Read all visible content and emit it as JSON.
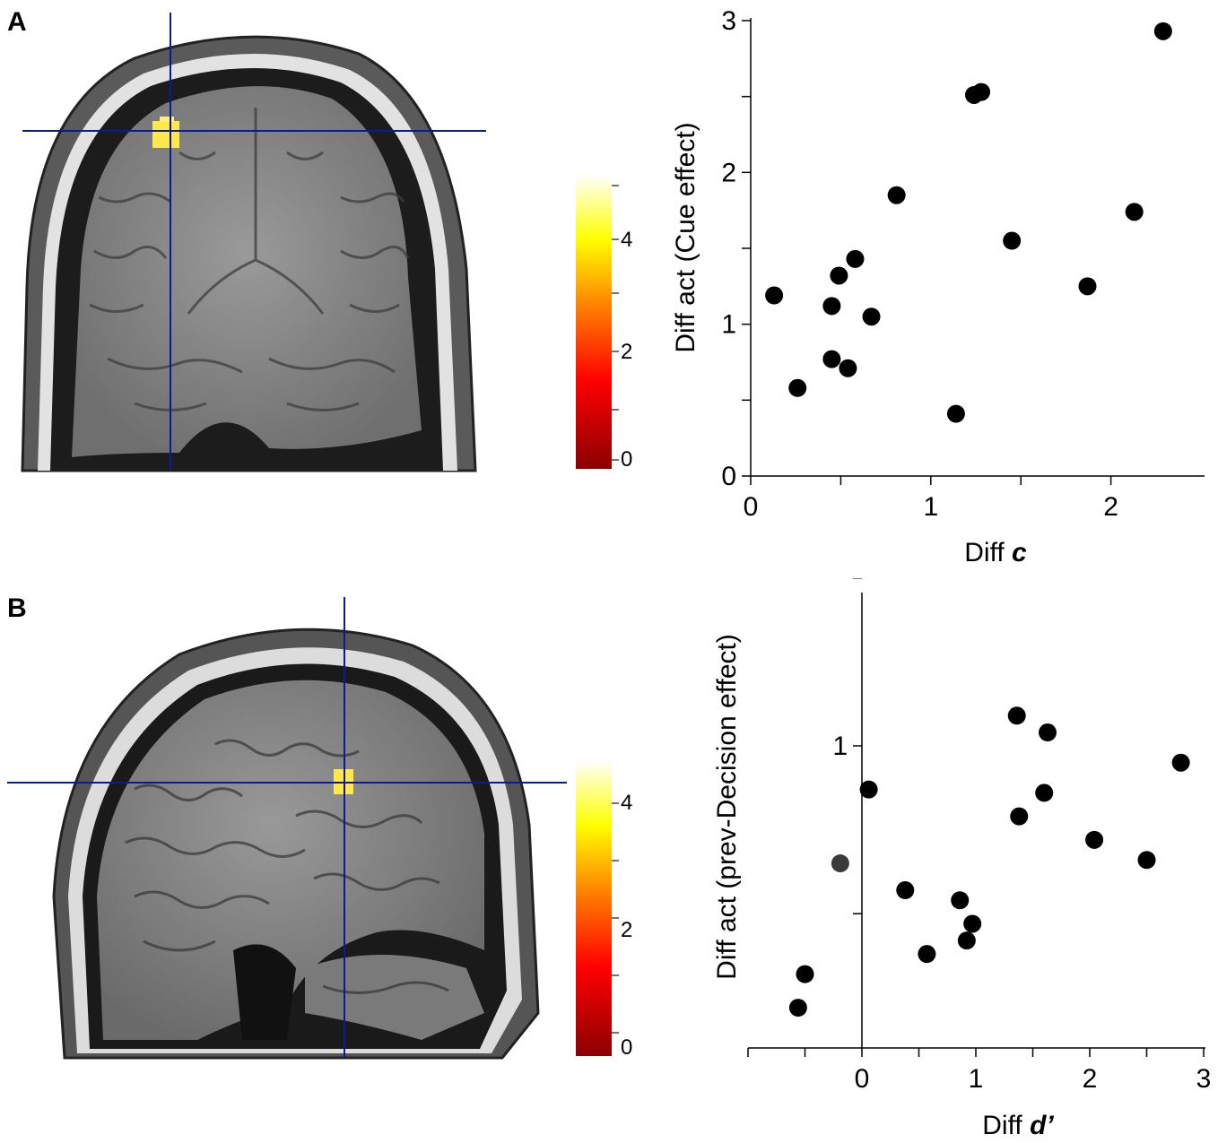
{
  "panels": [
    {
      "label": "A"
    },
    {
      "label": "B"
    }
  ],
  "colorbars": [
    {
      "ticks": [
        "4",
        "2",
        "0"
      ],
      "colors": [
        "#8b0000",
        "#ff0000",
        "#ff7f00",
        "#ffff00",
        "#ffffff"
      ]
    },
    {
      "ticks": [
        "4",
        "2",
        "0"
      ],
      "colors": [
        "#8b0000",
        "#ff0000",
        "#ff7f00",
        "#ffff00",
        "#ffffff"
      ]
    }
  ],
  "chart_data": [
    {
      "type": "scatter",
      "title": "",
      "xlabel": "Diff",
      "xlabel_var": "c",
      "ylabel": "Diff act (Cue effect)",
      "xlim": [
        0,
        2.5
      ],
      "ylim": [
        0,
        3
      ],
      "xticks": [
        "0",
        "1",
        "2"
      ],
      "yticks": [
        "0",
        "1",
        "2",
        "3"
      ],
      "x": [
        0.13,
        0.26,
        0.45,
        0.45,
        0.49,
        0.54,
        0.58,
        0.67,
        0.81,
        1.14,
        1.24,
        1.28,
        1.45,
        1.87,
        2.13,
        2.29
      ],
      "y": [
        1.19,
        0.58,
        1.12,
        0.77,
        1.32,
        0.71,
        1.43,
        1.05,
        1.85,
        0.41,
        2.51,
        2.53,
        1.55,
        1.25,
        1.74,
        2.93
      ]
    },
    {
      "type": "scatter",
      "title": "",
      "xlabel": "Diff",
      "xlabel_var": "d’",
      "ylabel": "Diff act (prev-Decision effect)",
      "xlim": [
        -1,
        3
      ],
      "ylim": [
        0.1,
        1.5
      ],
      "xticks": [
        "0",
        "1",
        "2",
        "3"
      ],
      "yticks": [
        "1"
      ],
      "x": [
        -0.56,
        -0.5,
        -0.19,
        0.06,
        0.38,
        0.57,
        0.86,
        0.92,
        0.97,
        1.36,
        1.38,
        1.6,
        1.63,
        2.04,
        2.5,
        2.8
      ],
      "y": [
        0.22,
        0.32,
        0.65,
        0.87,
        0.57,
        0.38,
        0.54,
        0.42,
        0.47,
        1.09,
        0.79,
        0.86,
        1.04,
        0.72,
        0.66,
        0.95
      ],
      "highlight_index": 2
    }
  ]
}
